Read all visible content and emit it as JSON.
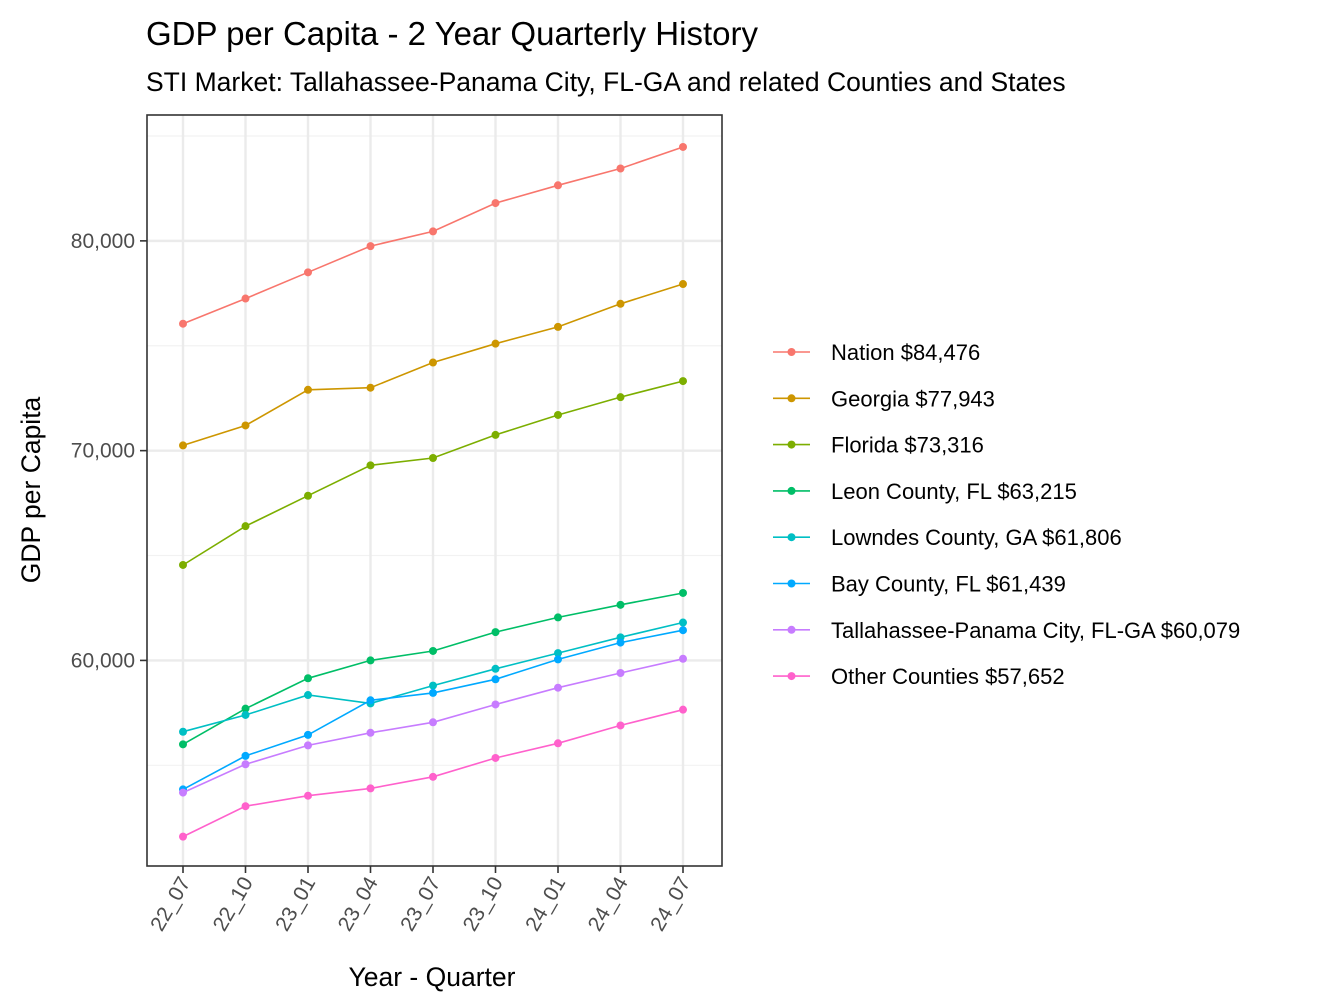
{
  "chart_data": {
    "type": "line",
    "title": "GDP per Capita - 2 Year Quarterly History",
    "subtitle": "STI Market: Tallahassee-Panama City, FL-GA and related Counties and States",
    "xlabel": "Year - Quarter",
    "ylabel": "GDP per Capita",
    "categories": [
      "22_07",
      "22_10",
      "23_01",
      "23_04",
      "23_07",
      "23_10",
      "24_01",
      "24_04",
      "24_07"
    ],
    "ylim": [
      50200,
      86000
    ],
    "yticks": [
      60000,
      70000,
      80000
    ],
    "ytick_labels": [
      "60,000",
      "70,000",
      "80,000"
    ],
    "grid": true,
    "legend_position": "right",
    "series": [
      {
        "name": "Nation $84,476",
        "color": "#F8766D",
        "values": [
          76050,
          77250,
          78500,
          79750,
          80450,
          81800,
          82650,
          83450,
          84476
        ]
      },
      {
        "name": "Georgia $77,943",
        "color": "#CD9600",
        "values": [
          70250,
          71200,
          72900,
          73000,
          74200,
          75100,
          75900,
          77000,
          77943
        ]
      },
      {
        "name": "Florida $73,316",
        "color": "#7CAE00",
        "values": [
          64550,
          66400,
          67850,
          69300,
          69650,
          70750,
          71700,
          72550,
          73316
        ]
      },
      {
        "name": "Leon County, FL $63,215",
        "color": "#00BE67",
        "values": [
          56000,
          57700,
          59150,
          60000,
          60450,
          61350,
          62050,
          62650,
          63215
        ]
      },
      {
        "name": "Lowndes County, GA $61,806",
        "color": "#00BFC4",
        "values": [
          56600,
          57400,
          58350,
          57950,
          58800,
          59600,
          60350,
          61100,
          61806
        ]
      },
      {
        "name": "Bay County, FL $61,439",
        "color": "#00A9FF",
        "values": [
          53850,
          55450,
          56450,
          58100,
          58450,
          59100,
          60050,
          60850,
          61439
        ]
      },
      {
        "name": "Tallahassee-Panama City, FL-GA $60,079",
        "color": "#C77CFF",
        "values": [
          53700,
          55050,
          55950,
          56550,
          57050,
          57900,
          58700,
          59400,
          60079
        ]
      },
      {
        "name": "Other Counties $57,652",
        "color": "#FF61CC",
        "values": [
          51600,
          53050,
          53550,
          53900,
          54450,
          55350,
          56050,
          56900,
          57652
        ]
      }
    ]
  }
}
